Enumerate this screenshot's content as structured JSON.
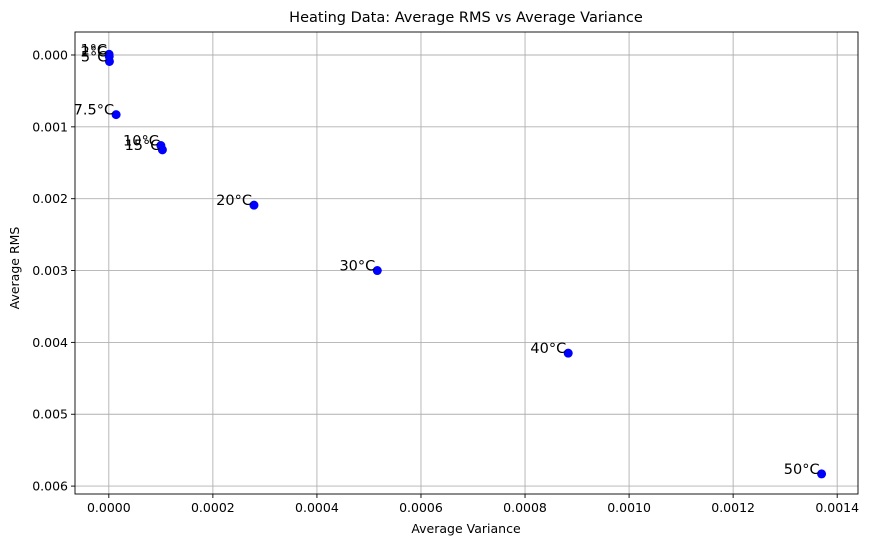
{
  "chart_data": {
    "type": "scatter",
    "title": "Heating Data: Average RMS vs Average Variance",
    "xlabel": "Average Variance",
    "ylabel": "Average RMS",
    "xlim": [
      -6.5e-05,
      0.00144
    ],
    "ylim": [
      0.00611,
      -0.00032
    ],
    "y_inverted": true,
    "grid": true,
    "marker_color": "#0000ff",
    "x_ticks": [
      0.0,
      0.0002,
      0.0004,
      0.0006,
      0.0008,
      0.001,
      0.0012,
      0.0014
    ],
    "x_tick_labels": [
      "0.0000",
      "0.0002",
      "0.0004",
      "0.0006",
      "0.0008",
      "0.0010",
      "0.0012",
      "0.0014"
    ],
    "y_ticks": [
      0.0,
      0.001,
      0.002,
      0.003,
      0.004,
      0.005,
      0.006
    ],
    "y_tick_labels": [
      "0.000",
      "0.001",
      "0.002",
      "0.003",
      "0.004",
      "0.005",
      "0.006"
    ],
    "points": [
      {
        "label": "1°C",
        "x": 5e-07,
        "y": -1e-05
      },
      {
        "label": "2°C",
        "x": 8e-07,
        "y": 2e-05
      },
      {
        "label": "5°C",
        "x": 1.2e-06,
        "y": 9e-05
      },
      {
        "label": "7.5°C",
        "x": 1.4e-05,
        "y": 0.00083
      },
      {
        "label": "10°C",
        "x": 0.0001,
        "y": 0.00126
      },
      {
        "label": "15°C",
        "x": 0.000103,
        "y": 0.00132
      },
      {
        "label": "20°C",
        "x": 0.000279,
        "y": 0.00209
      },
      {
        "label": "30°C",
        "x": 0.000516,
        "y": 0.003
      },
      {
        "label": "40°C",
        "x": 0.000883,
        "y": 0.00415
      },
      {
        "label": "50°C",
        "x": 0.00137,
        "y": 0.00583
      }
    ]
  }
}
